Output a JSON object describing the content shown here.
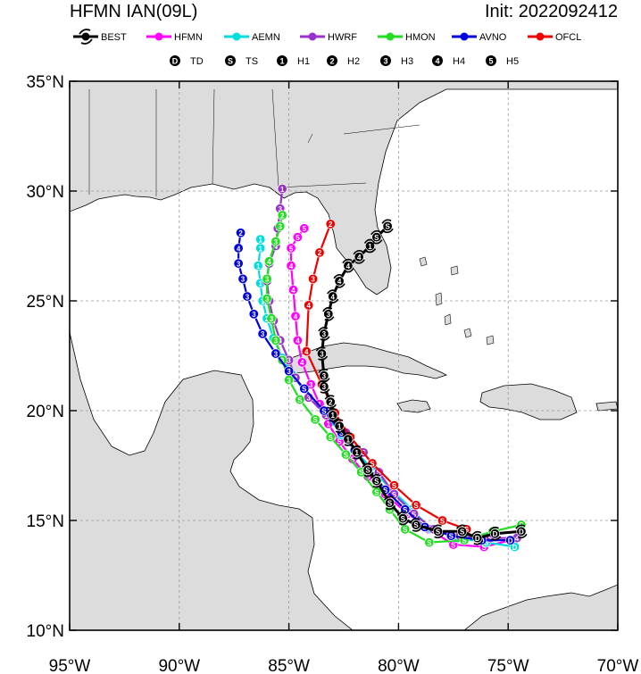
{
  "header": {
    "title": "HFMN IAN(09L)",
    "init": "Init: 2022092412"
  },
  "legend": {
    "models": [
      {
        "label": "BEST",
        "color": "#000000",
        "icon": "hurricane-symbol"
      },
      {
        "label": "HFMN",
        "color": "#ff00ff"
      },
      {
        "label": "AEMN",
        "color": "#00dddd"
      },
      {
        "label": "HWRF",
        "color": "#9932cc"
      },
      {
        "label": "HMON",
        "color": "#22dd22"
      },
      {
        "label": "AVNO",
        "color": "#0000dd"
      },
      {
        "label": "OFCL",
        "color": "#ee0000"
      }
    ],
    "intensity": [
      {
        "code": "D",
        "label": "TD",
        "icon": "circled-letter-D"
      },
      {
        "code": "S",
        "label": "TS",
        "icon": "circled-letter-S"
      },
      {
        "code": "1",
        "label": "H1",
        "icon": "circled-digit-1"
      },
      {
        "code": "2",
        "label": "H2",
        "icon": "circled-digit-2"
      },
      {
        "code": "3",
        "label": "H3",
        "icon": "circled-digit-3"
      },
      {
        "code": "4",
        "label": "H4",
        "icon": "circled-digit-4"
      },
      {
        "code": "5",
        "label": "H5",
        "icon": "circled-digit-5"
      }
    ]
  },
  "chart_data": {
    "type": "scatter",
    "projection": "lat-lon track map",
    "xlim": [
      -95,
      -70
    ],
    "ylim": [
      10,
      35
    ],
    "grid": true,
    "grid_style": "dashed",
    "land_color": "#dcdcdc",
    "ocean_color": "#ffffff",
    "x_ticks": [
      {
        "value": -95,
        "label": "95°W"
      },
      {
        "value": -90,
        "label": "90°W"
      },
      {
        "value": -85,
        "label": "85°W"
      },
      {
        "value": -80,
        "label": "80°W"
      },
      {
        "value": -75,
        "label": "75°W"
      },
      {
        "value": -70,
        "label": "70°W"
      }
    ],
    "y_ticks": [
      {
        "value": 10,
        "label": "10°N"
      },
      {
        "value": 15,
        "label": "15°N"
      },
      {
        "value": 20,
        "label": "20°N"
      },
      {
        "value": 25,
        "label": "25°N"
      },
      {
        "value": 30,
        "label": "30°N"
      },
      {
        "value": 35,
        "label": "35°N"
      }
    ],
    "series": [
      {
        "name": "HFMN",
        "color": "#ff00ff",
        "points": [
          [
            -74.9,
            14.1,
            "S"
          ],
          [
            -76.1,
            13.8,
            "S"
          ],
          [
            -77.5,
            13.9,
            "S"
          ],
          [
            -78.6,
            14.6,
            "S"
          ],
          [
            -79.6,
            15.3,
            "S"
          ],
          [
            -80.6,
            16.2,
            "S"
          ],
          [
            -81.4,
            17.0,
            "S"
          ],
          [
            -82.1,
            17.8,
            "S"
          ],
          [
            -82.7,
            18.6,
            "S"
          ],
          [
            -83.2,
            19.4,
            "1"
          ],
          [
            -83.6,
            20.3,
            "1"
          ],
          [
            -84.0,
            21.2,
            "3"
          ],
          [
            -84.4,
            22.2,
            "4"
          ],
          [
            -84.6,
            23.2,
            "4"
          ],
          [
            -84.7,
            24.3,
            "4"
          ],
          [
            -84.8,
            25.5,
            "4"
          ],
          [
            -84.9,
            26.6,
            "4"
          ],
          [
            -84.9,
            27.4,
            "5"
          ],
          [
            -84.6,
            27.9,
            "5"
          ],
          [
            -84.3,
            28.3,
            "5"
          ]
        ]
      },
      {
        "name": "AEMN",
        "color": "#00dddd",
        "points": [
          [
            -74.7,
            13.8,
            "D"
          ],
          [
            -76.0,
            14.0,
            "S"
          ],
          [
            -77.3,
            14.2,
            "S"
          ],
          [
            -78.5,
            14.6,
            "S"
          ],
          [
            -79.4,
            15.5,
            "S"
          ],
          [
            -80.3,
            16.4,
            "S"
          ],
          [
            -81.1,
            17.2,
            "S"
          ],
          [
            -81.8,
            18.0,
            "S"
          ],
          [
            -82.6,
            18.9,
            "S"
          ],
          [
            -83.3,
            19.8,
            "S"
          ],
          [
            -84.1,
            20.6,
            "1"
          ],
          [
            -84.8,
            21.6,
            "1"
          ],
          [
            -85.3,
            22.4,
            "1"
          ],
          [
            -85.7,
            23.3,
            "1"
          ],
          [
            -86.0,
            24.2,
            "2"
          ],
          [
            -86.2,
            25.0,
            "1"
          ],
          [
            -86.3,
            25.8,
            "1"
          ],
          [
            -86.4,
            26.6,
            "1"
          ],
          [
            -86.3,
            27.4,
            "1"
          ],
          [
            -86.3,
            27.8,
            "1"
          ]
        ]
      },
      {
        "name": "HWRF",
        "color": "#9932cc",
        "points": [
          [
            -74.6,
            14.2,
            "4"
          ],
          [
            -75.8,
            14.2,
            "S"
          ],
          [
            -77.2,
            14.3,
            "S"
          ],
          [
            -78.4,
            14.6,
            "S"
          ],
          [
            -79.3,
            15.3,
            "S"
          ],
          [
            -80.2,
            16.2,
            "S"
          ],
          [
            -80.9,
            17.2,
            "S"
          ],
          [
            -81.6,
            18.1,
            "S"
          ],
          [
            -82.4,
            19.0,
            "S"
          ],
          [
            -83.3,
            19.8,
            "1"
          ],
          [
            -84.1,
            20.6,
            "3"
          ],
          [
            -84.7,
            21.5,
            "3"
          ],
          [
            -85.0,
            22.3,
            "3"
          ],
          [
            -85.4,
            23.2,
            "4"
          ],
          [
            -85.7,
            24.1,
            "4"
          ],
          [
            -85.9,
            25.0,
            "4"
          ],
          [
            -86.0,
            25.9,
            "4"
          ],
          [
            -85.9,
            26.7,
            "4"
          ],
          [
            -85.6,
            27.5,
            "4"
          ],
          [
            -85.5,
            28.3,
            "4"
          ],
          [
            -85.4,
            29.2,
            "3"
          ],
          [
            -85.3,
            30.1,
            "1"
          ]
        ]
      },
      {
        "name": "HMON",
        "color": "#22dd22",
        "points": [
          [
            -74.4,
            14.8,
            "S"
          ],
          [
            -75.7,
            14.5,
            "S"
          ],
          [
            -77.0,
            14.1,
            "S"
          ],
          [
            -78.6,
            14.0,
            "S"
          ],
          [
            -79.7,
            14.6,
            "S"
          ],
          [
            -80.4,
            15.5,
            "S"
          ],
          [
            -81.0,
            16.3,
            "S"
          ],
          [
            -81.7,
            17.2,
            "S"
          ],
          [
            -82.4,
            18.0,
            "S"
          ],
          [
            -83.1,
            18.8,
            "S"
          ],
          [
            -83.8,
            19.6,
            "S"
          ],
          [
            -84.5,
            20.5,
            "S"
          ],
          [
            -85.0,
            21.4,
            "3"
          ],
          [
            -85.3,
            22.3,
            "3"
          ],
          [
            -85.6,
            23.2,
            "3"
          ],
          [
            -85.8,
            24.2,
            "3"
          ],
          [
            -86.0,
            25.1,
            "3"
          ],
          [
            -86.0,
            26.0,
            "3"
          ],
          [
            -85.9,
            26.8,
            "4"
          ],
          [
            -85.6,
            27.7,
            "3"
          ],
          [
            -85.4,
            28.4,
            "3"
          ],
          [
            -85.3,
            28.9,
            "2"
          ]
        ]
      },
      {
        "name": "AVNO",
        "color": "#0000dd",
        "points": [
          [
            -74.9,
            14.1,
            "D"
          ],
          [
            -76.2,
            14.1,
            "D"
          ],
          [
            -77.6,
            14.3,
            "S"
          ],
          [
            -78.8,
            14.7,
            "S"
          ],
          [
            -79.7,
            15.5,
            "S"
          ],
          [
            -80.6,
            16.4,
            "S"
          ],
          [
            -81.4,
            17.3,
            "S"
          ],
          [
            -82.0,
            18.2,
            "S"
          ],
          [
            -82.6,
            19.0,
            "S"
          ],
          [
            -83.4,
            20.0,
            "S"
          ],
          [
            -84.3,
            21.0,
            "S"
          ],
          [
            -85.0,
            21.8,
            "3"
          ],
          [
            -85.6,
            22.6,
            "3"
          ],
          [
            -86.2,
            23.5,
            "3"
          ],
          [
            -86.6,
            24.4,
            "3"
          ],
          [
            -86.9,
            25.2,
            "3"
          ],
          [
            -87.1,
            26.0,
            "3"
          ],
          [
            -87.3,
            26.7,
            "3"
          ],
          [
            -87.3,
            27.4,
            "4"
          ],
          [
            -87.2,
            28.1,
            "2"
          ]
        ]
      },
      {
        "name": "OFCL",
        "color": "#ee0000",
        "points": [
          [
            -76.9,
            14.6,
            "S"
          ],
          [
            -78.0,
            15.0,
            "S"
          ],
          [
            -79.2,
            15.7,
            "S"
          ],
          [
            -80.2,
            16.6,
            "S"
          ],
          [
            -81.2,
            17.6,
            "S"
          ],
          [
            -82.2,
            18.8,
            "1"
          ],
          [
            -82.9,
            19.9,
            "2"
          ],
          [
            -83.5,
            21.2,
            "3"
          ],
          [
            -84.2,
            22.7,
            "4"
          ],
          [
            -84.1,
            24.8,
            "4"
          ],
          [
            -83.9,
            26.0,
            "3"
          ],
          [
            -83.6,
            27.2,
            "2"
          ],
          [
            -83.1,
            28.5,
            "2"
          ]
        ]
      },
      {
        "name": "BEST",
        "color": "#000000",
        "points": [
          [
            -74.4,
            14.5,
            "D"
          ],
          [
            -75.6,
            14.4,
            "D"
          ],
          [
            -76.4,
            14.2,
            "D"
          ],
          [
            -77.1,
            14.5,
            "S"
          ],
          [
            -78.2,
            14.5,
            "S"
          ],
          [
            -79.2,
            14.8,
            "S"
          ],
          [
            -79.8,
            15.1,
            "S"
          ],
          [
            -80.4,
            15.8,
            "S"
          ],
          [
            -81.0,
            16.8,
            "S"
          ],
          [
            -81.4,
            17.3,
            "S"
          ],
          [
            -81.9,
            18.1,
            "1"
          ],
          [
            -82.3,
            18.7,
            "1"
          ],
          [
            -82.7,
            19.3,
            "1"
          ],
          [
            -83.0,
            19.8,
            "1"
          ],
          [
            -83.1,
            20.4,
            "2"
          ],
          [
            -83.4,
            21.1,
            "3"
          ],
          [
            -83.4,
            21.6,
            "3"
          ],
          [
            -83.5,
            22.6,
            "3"
          ],
          [
            -83.4,
            23.5,
            "3"
          ],
          [
            -83.2,
            24.4,
            "3"
          ],
          [
            -83.0,
            25.2,
            "4"
          ],
          [
            -82.7,
            25.9,
            "4"
          ],
          [
            -82.3,
            26.6,
            "4"
          ],
          [
            -81.8,
            27.0,
            "4"
          ],
          [
            -81.3,
            27.5,
            "1"
          ],
          [
            -81.0,
            27.9,
            "S"
          ],
          [
            -80.5,
            28.4,
            "S"
          ]
        ]
      }
    ]
  }
}
